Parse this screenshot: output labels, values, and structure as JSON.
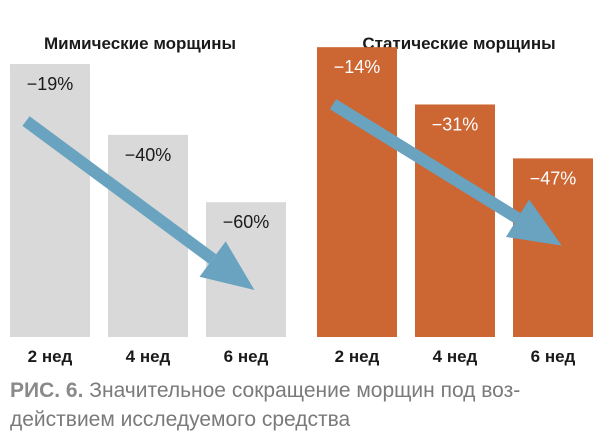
{
  "chart_data": [
    {
      "type": "bar",
      "title": "Мимические морщины",
      "categories": [
        "2 нед",
        "4 нед",
        "6 нед"
      ],
      "values": [
        -19,
        -40,
        -60
      ],
      "value_labels": [
        "−19%",
        "−40%",
        "−60%"
      ],
      "ylim": [
        -100,
        0
      ],
      "bar_color": "#d9d9d9",
      "label_color": "#1a1a1a",
      "trend_arrow": true
    },
    {
      "type": "bar",
      "title": "Статические морщины",
      "categories": [
        "2 нед",
        "4 нед",
        "6 нед"
      ],
      "values": [
        -14,
        -31,
        -47
      ],
      "value_labels": [
        "−14%",
        "−31%",
        "−47%"
      ],
      "ylim": [
        -100,
        0
      ],
      "bar_color": "#cc6633",
      "label_color": "#ffffff",
      "trend_arrow": true
    }
  ],
  "arrow_color": "#6aa3bf",
  "caption": {
    "label": "РИС. 6.",
    "text": "Значительное сокращение морщин под воз-действием исследуемого средства"
  }
}
